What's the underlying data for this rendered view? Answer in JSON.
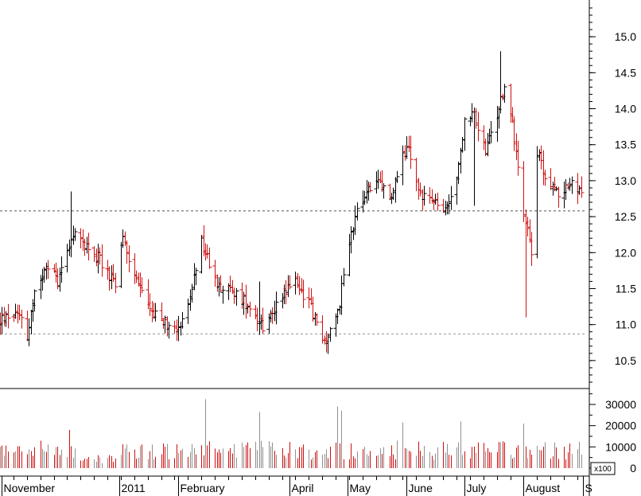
{
  "chart_data": {
    "type": "ohlc",
    "price_axis": {
      "ticks": [
        "10.5",
        "11.0",
        "11.5",
        "12.0",
        "12.5",
        "13.0",
        "13.5",
        "14.0",
        "14.5",
        "15.0"
      ],
      "tick_values": [
        10.5,
        11.0,
        11.5,
        12.0,
        12.5,
        13.0,
        13.5,
        14.0,
        14.5,
        15.0
      ],
      "ylim": [
        10.2,
        15.4
      ],
      "reference_lines": [
        12.58,
        10.87
      ]
    },
    "volume_axis": {
      "ticks": [
        "0",
        "10000",
        "20000",
        "30000"
      ],
      "tick_values": [
        0,
        10000,
        20000,
        30000
      ],
      "ylim": [
        0,
        36000
      ],
      "unit_label": "x100"
    },
    "x_axis": {
      "months": [
        {
          "label": "November",
          "day": 1
        },
        {
          "label": "2011",
          "day": 62
        },
        {
          "label": "February",
          "day": 93
        },
        {
          "label": "April",
          "day": 151
        },
        {
          "label": "May",
          "day": 181
        },
        {
          "label": "June",
          "day": 212
        },
        {
          "label": "July",
          "day": 242
        },
        {
          "label": "August",
          "day": 273
        },
        {
          "label": "S",
          "day": 304
        }
      ],
      "day_range": [
        0,
        306
      ]
    },
    "colors": {
      "up": "#000000",
      "down": "#d01010",
      "volume_neutral": "#909090"
    },
    "anchors": [
      [
        0,
        11.05
      ],
      [
        10,
        11.2
      ],
      [
        14,
        10.85
      ],
      [
        18,
        11.45
      ],
      [
        25,
        11.8
      ],
      [
        30,
        11.6
      ],
      [
        37,
        12.25
      ],
      [
        45,
        12.1
      ],
      [
        52,
        11.9
      ],
      [
        60,
        11.55
      ],
      [
        64,
        12.2
      ],
      [
        70,
        11.65
      ],
      [
        80,
        11.15
      ],
      [
        90,
        10.95
      ],
      [
        97,
        11.1
      ],
      [
        105,
        12.15
      ],
      [
        112,
        11.6
      ],
      [
        121,
        11.45
      ],
      [
        129,
        11.3
      ],
      [
        138,
        10.95
      ],
      [
        147,
        11.45
      ],
      [
        154,
        11.6
      ],
      [
        162,
        11.25
      ],
      [
        168,
        10.75
      ],
      [
        174,
        10.95
      ],
      [
        177,
        11.3
      ],
      [
        180,
        12.0
      ],
      [
        186,
        12.55
      ],
      [
        192,
        12.9
      ],
      [
        198,
        12.95
      ],
      [
        204,
        12.75
      ],
      [
        212,
        13.5
      ],
      [
        218,
        12.85
      ],
      [
        226,
        12.7
      ],
      [
        232,
        12.55
      ],
      [
        238,
        13.05
      ],
      [
        242,
        13.8
      ],
      [
        247,
        13.9
      ],
      [
        253,
        13.4
      ],
      [
        259,
        13.9
      ],
      [
        263,
        14.3
      ],
      [
        267,
        13.8
      ],
      [
        273,
        12.6
      ],
      [
        277,
        12.05
      ],
      [
        280,
        13.4
      ],
      [
        285,
        13.0
      ],
      [
        291,
        12.8
      ],
      [
        295,
        12.95
      ],
      [
        301,
        12.9
      ]
    ],
    "spikes": [
      {
        "day": 37,
        "high": 12.85
      },
      {
        "day": 135,
        "high": 11.6
      },
      {
        "day": 247,
        "low": 12.65
      },
      {
        "day": 261,
        "high": 14.8
      },
      {
        "day": 274,
        "low": 11.1
      },
      {
        "day": 279,
        "high": 13.75
      }
    ],
    "volume_spikes": [
      {
        "day": 27,
        "v": 19500
      },
      {
        "day": 36,
        "v": 18000
      },
      {
        "day": 107,
        "v": 32500
      },
      {
        "day": 135,
        "v": 26500
      },
      {
        "day": 176,
        "v": 29000
      },
      {
        "day": 178,
        "v": 27000
      },
      {
        "day": 210,
        "v": 21500
      },
      {
        "day": 240,
        "v": 22000
      },
      {
        "day": 273,
        "v": 21000
      },
      {
        "day": 304,
        "v": 17000
      }
    ]
  }
}
